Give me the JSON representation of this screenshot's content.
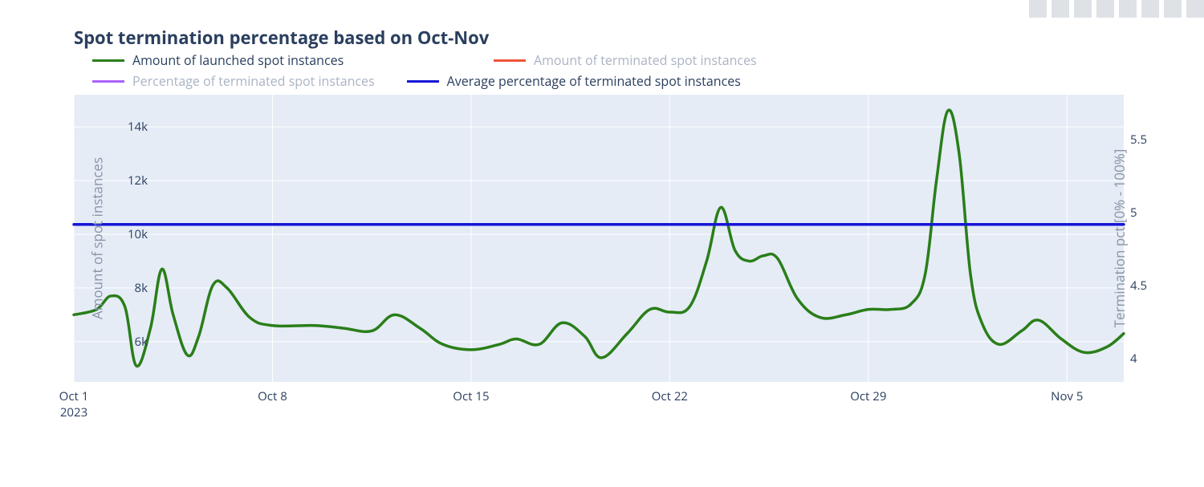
{
  "chart": {
    "type": "line-dual-axis",
    "title": "Spot termination percentage based on Oct-Nov",
    "title_fontsize": 22,
    "title_color": "#2a3f5f",
    "background_color": "#ffffff",
    "plot_background_color": "#e5ecf6",
    "grid_color": "#ffffff",
    "tick_font_color": "#2a3f5f",
    "tick_fontsize": 15,
    "axis_title_color": "#8a94a6",
    "axis_title_fontsize": 17,
    "legend": {
      "fontsize": 16,
      "active_color": "#2a3f5f",
      "inactive_color": "#aab4c4",
      "items": [
        {
          "label": "Amount of launched spot instances",
          "color": "#2a7e19",
          "active": true
        },
        {
          "label": "Amount of terminated spot instances",
          "color": "#ef553b",
          "active": false
        },
        {
          "label": "Percentage of terminated spot instances",
          "color": "#ab63fa",
          "active": false
        },
        {
          "label": "Average percentage of terminated spot instances",
          "color": "#1616d6",
          "active": true
        }
      ]
    },
    "x_axis": {
      "start_day_index": 0,
      "end_day_index": 37,
      "ticks": [
        {
          "day_index": 0,
          "label": "Oct 1\n2023"
        },
        {
          "day_index": 7,
          "label": "Oct 8"
        },
        {
          "day_index": 14,
          "label": "Oct 15"
        },
        {
          "day_index": 21,
          "label": "Oct 22"
        },
        {
          "day_index": 28,
          "label": "Oct 29"
        },
        {
          "day_index": 35,
          "label": "Nov 5"
        }
      ]
    },
    "y_axis_left": {
      "title": "Amount of spot instances",
      "min": 4500,
      "max": 15200,
      "ticks": [
        {
          "value": 6000,
          "label": "6k"
        },
        {
          "value": 8000,
          "label": "8k"
        },
        {
          "value": 10000,
          "label": "10k"
        },
        {
          "value": 12000,
          "label": "12k"
        },
        {
          "value": 14000,
          "label": "14k"
        }
      ]
    },
    "y_axis_right": {
      "title": "Termination pct [0% - 100%]",
      "min": 3.84,
      "max": 5.81,
      "ticks": [
        {
          "value": 4.0,
          "label": "4"
        },
        {
          "value": 4.5,
          "label": "4.5"
        },
        {
          "value": 5.0,
          "label": "5"
        },
        {
          "value": 5.5,
          "label": "5.5"
        }
      ]
    },
    "series_launched": {
      "name": "Amount of launched spot instances",
      "color": "#2a7e19",
      "line_width": 3.5,
      "axis": "left",
      "smoothing": "spline",
      "points": [
        [
          0.0,
          7000
        ],
        [
          0.8,
          7200
        ],
        [
          1.3,
          7700
        ],
        [
          1.8,
          7300
        ],
        [
          2.2,
          5100
        ],
        [
          2.7,
          6500
        ],
        [
          3.1,
          8700
        ],
        [
          3.5,
          7000
        ],
        [
          4.0,
          5500
        ],
        [
          4.4,
          6200
        ],
        [
          4.9,
          8100
        ],
        [
          5.4,
          8000
        ],
        [
          6.2,
          6900
        ],
        [
          7.0,
          6600
        ],
        [
          8.5,
          6600
        ],
        [
          9.5,
          6500
        ],
        [
          10.5,
          6400
        ],
        [
          11.3,
          7000
        ],
        [
          12.2,
          6500
        ],
        [
          13.0,
          5900
        ],
        [
          14.0,
          5700
        ],
        [
          15.0,
          5900
        ],
        [
          15.6,
          6100
        ],
        [
          16.4,
          5900
        ],
        [
          17.2,
          6700
        ],
        [
          18.0,
          6200
        ],
        [
          18.6,
          5400
        ],
        [
          19.5,
          6300
        ],
        [
          20.3,
          7200
        ],
        [
          21.0,
          7100
        ],
        [
          21.7,
          7300
        ],
        [
          22.3,
          9000
        ],
        [
          22.8,
          11000
        ],
        [
          23.3,
          9400
        ],
        [
          23.8,
          9000
        ],
        [
          24.3,
          9200
        ],
        [
          24.8,
          9100
        ],
        [
          25.5,
          7600
        ],
        [
          26.3,
          6900
        ],
        [
          27.2,
          7000
        ],
        [
          28.0,
          7200
        ],
        [
          28.8,
          7200
        ],
        [
          29.5,
          7400
        ],
        [
          30.0,
          8500
        ],
        [
          30.4,
          12000
        ],
        [
          30.8,
          14600
        ],
        [
          31.2,
          13000
        ],
        [
          31.6,
          8500
        ],
        [
          32.0,
          6700
        ],
        [
          32.6,
          5900
        ],
        [
          33.4,
          6400
        ],
        [
          34.0,
          6800
        ],
        [
          34.8,
          6100
        ],
        [
          35.6,
          5600
        ],
        [
          36.4,
          5800
        ],
        [
          37.0,
          6300
        ]
      ]
    },
    "series_avg_pct": {
      "name": "Average percentage of terminated spot instances",
      "color": "#1616d6",
      "line_width": 3.5,
      "axis": "right",
      "value": 4.92,
      "x_start": 0.0,
      "x_end": 37.0
    },
    "modebar_icons": [
      "camera-icon",
      "zoom-icon",
      "pan-icon",
      "zoom-in-icon",
      "zoom-out-icon",
      "autoscale-icon",
      "reset-axes-icon",
      "logo-icon"
    ]
  }
}
